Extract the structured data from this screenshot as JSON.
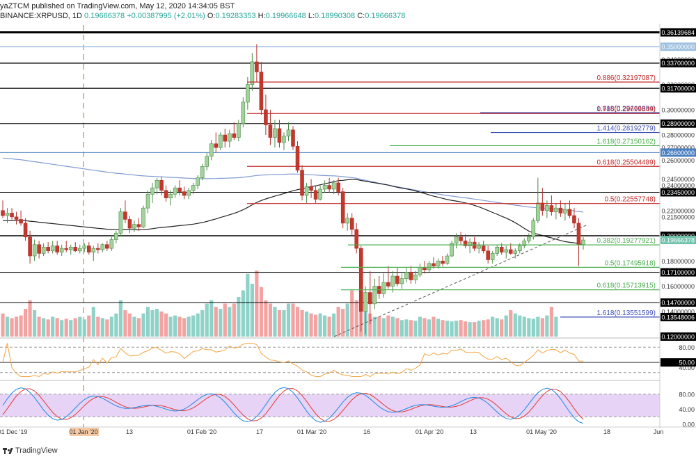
{
  "header": {
    "line1": "yaZTCM published on TradingView.com, May 12, 2020 14:34:05 BST",
    "symbol": "BINANCE:XRPUSD, 1D",
    "last": "0.19666378",
    "change": "+0.00387995 (+2.01%)",
    "o_label": "O:",
    "o": "0.19283353",
    "h_label": "H:",
    "h": "0.19966648",
    "l_label": "L:",
    "l": "0.18990308",
    "c_label": "C:",
    "c": "0.19666378"
  },
  "footer": {
    "brand": "TradingView"
  },
  "chart_data": {
    "type": "candlestick",
    "symbol": "XRPUSD",
    "interval": "1D",
    "exchange": "BINANCE",
    "price_range": [
      0.12,
      0.365
    ],
    "price_scale_ticks": [
      "0.36139684",
      "0.35000000",
      "0.34000000",
      "0.33700000",
      "0.32000000",
      "0.31700000",
      "0.30000000",
      "0.28900000",
      "0.28000000",
      "0.27000000",
      "0.26600000",
      "0.26000000",
      "0.24500000",
      "0.24000000",
      "0.23450000",
      "0.22000000",
      "0.21500000",
      "0.20000000",
      "0.19666378",
      "0.18000000",
      "0.17100000",
      "0.16000000",
      "0.14700000",
      "0.14000000",
      "0.13548006",
      "0.12000000"
    ],
    "last_price": 0.19666378,
    "horizontal_levels": [
      {
        "price": 0.36139684,
        "color": "#000000",
        "width": 3,
        "label": "0.36139684",
        "tag_bg": "#000000"
      },
      {
        "price": 0.35,
        "color": "#9ec1e0",
        "width": 1.5,
        "label": "0.35000000",
        "tag_bg": "#9ec1e0"
      },
      {
        "price": 0.337,
        "color": "#000000",
        "width": 1.5,
        "label": "0.33700000",
        "tag_bg": "#000000"
      },
      {
        "price": 0.317,
        "color": "#000000",
        "width": 1.5,
        "label": "0.31700000",
        "tag_bg": "#000000"
      },
      {
        "price": 0.289,
        "color": "#000000",
        "width": 1,
        "label": "0.28900000",
        "tag_bg": "#000000"
      },
      {
        "price": 0.266,
        "color": "#4a7fc1",
        "width": 1,
        "label": "0.26600000",
        "tag_bg": "#4a7fc1"
      },
      {
        "price": 0.2345,
        "color": "#000000",
        "width": 1,
        "label": "0.23450000",
        "tag_bg": "#000000"
      },
      {
        "price": 0.2,
        "color": "#000000",
        "width": 1.5,
        "label": "0.20000000",
        "tag_bg": "#000000"
      },
      {
        "price": 0.171,
        "color": "#000000",
        "width": 1,
        "label": "0.17100000",
        "tag_bg": "#000000"
      },
      {
        "price": 0.147,
        "color": "#000000",
        "width": 1,
        "label": "0.14700000",
        "tag_bg": "#000000"
      },
      {
        "price": 0.13548006,
        "color": "#000000",
        "width": 0,
        "label": "0.13548006",
        "tag_bg": "#000000"
      },
      {
        "price": 0.12,
        "color": "#000000",
        "width": 0,
        "label": "0.12000000",
        "tag_bg": "#000000"
      }
    ],
    "fib_levels": [
      {
        "ratio": "0.886",
        "price": 0.32197087,
        "color": "#c62828",
        "x_start": 355
      },
      {
        "ratio": "1.618",
        "price": 0.29766894,
        "color": "#3f51b5",
        "x_start": 690
      },
      {
        "ratio": "0.786",
        "price": 0.29699849,
        "color": "#c62828",
        "x_start": 355
      },
      {
        "ratio": "1.414",
        "price": 0.28192779,
        "color": "#3f51b5",
        "x_start": 705
      },
      {
        "ratio": "1.618",
        "price": 0.27150162,
        "color": "#4caf50",
        "x_start": 560
      },
      {
        "ratio": "0.618",
        "price": 0.25504489,
        "color": "#c62828",
        "x_start": 355
      },
      {
        "ratio": "0.5",
        "price": 0.22557748,
        "color": "#c62828",
        "x_start": 355
      },
      {
        "ratio": "0.382",
        "price": 0.19277921,
        "color": "#4caf50",
        "x_start": 500
      },
      {
        "ratio": "0.5",
        "price": 0.17495918,
        "color": "#4caf50",
        "x_start": 490
      },
      {
        "ratio": "0.618",
        "price": 0.15713915,
        "color": "#4caf50",
        "x_start": 490
      },
      {
        "ratio": "1.618",
        "price": 0.13551599,
        "color": "#3f51b5",
        "x_start": 805
      }
    ],
    "x_axis_labels": [
      "01 Dec '19",
      "01 Jan '20",
      "13",
      "01 Feb '20",
      "17",
      "01 Mar '20",
      "16",
      "01 Apr '20",
      "13",
      "01 May '20",
      "18",
      "Jun"
    ],
    "candles": [
      {
        "o": 0.22,
        "h": 0.228,
        "l": 0.214,
        "c": 0.216
      },
      {
        "o": 0.216,
        "h": 0.222,
        "l": 0.21,
        "c": 0.218
      },
      {
        "o": 0.218,
        "h": 0.222,
        "l": 0.213,
        "c": 0.215
      },
      {
        "o": 0.215,
        "h": 0.219,
        "l": 0.209,
        "c": 0.213
      },
      {
        "o": 0.213,
        "h": 0.22,
        "l": 0.208,
        "c": 0.21
      },
      {
        "o": 0.21,
        "h": 0.214,
        "l": 0.196,
        "c": 0.199
      },
      {
        "o": 0.199,
        "h": 0.204,
        "l": 0.178,
        "c": 0.184
      },
      {
        "o": 0.184,
        "h": 0.197,
        "l": 0.18,
        "c": 0.193
      },
      {
        "o": 0.193,
        "h": 0.196,
        "l": 0.182,
        "c": 0.186
      },
      {
        "o": 0.186,
        "h": 0.194,
        "l": 0.184,
        "c": 0.191
      },
      {
        "o": 0.191,
        "h": 0.195,
        "l": 0.186,
        "c": 0.188
      },
      {
        "o": 0.188,
        "h": 0.196,
        "l": 0.186,
        "c": 0.192
      },
      {
        "o": 0.192,
        "h": 0.196,
        "l": 0.185,
        "c": 0.187
      },
      {
        "o": 0.187,
        "h": 0.193,
        "l": 0.184,
        "c": 0.19
      },
      {
        "o": 0.19,
        "h": 0.196,
        "l": 0.187,
        "c": 0.189
      },
      {
        "o": 0.189,
        "h": 0.193,
        "l": 0.185,
        "c": 0.191
      },
      {
        "o": 0.191,
        "h": 0.195,
        "l": 0.187,
        "c": 0.188
      },
      {
        "o": 0.188,
        "h": 0.193,
        "l": 0.186,
        "c": 0.19
      },
      {
        "o": 0.19,
        "h": 0.194,
        "l": 0.187,
        "c": 0.192
      },
      {
        "o": 0.192,
        "h": 0.195,
        "l": 0.185,
        "c": 0.187
      },
      {
        "o": 0.187,
        "h": 0.192,
        "l": 0.18,
        "c": 0.19
      },
      {
        "o": 0.19,
        "h": 0.194,
        "l": 0.186,
        "c": 0.189
      },
      {
        "o": 0.189,
        "h": 0.194,
        "l": 0.187,
        "c": 0.193
      },
      {
        "o": 0.193,
        "h": 0.196,
        "l": 0.188,
        "c": 0.19
      },
      {
        "o": 0.19,
        "h": 0.199,
        "l": 0.188,
        "c": 0.197
      },
      {
        "o": 0.197,
        "h": 0.204,
        "l": 0.194,
        "c": 0.202
      },
      {
        "o": 0.202,
        "h": 0.222,
        "l": 0.2,
        "c": 0.219
      },
      {
        "o": 0.219,
        "h": 0.228,
        "l": 0.21,
        "c": 0.213
      },
      {
        "o": 0.213,
        "h": 0.216,
        "l": 0.202,
        "c": 0.206
      },
      {
        "o": 0.206,
        "h": 0.212,
        "l": 0.203,
        "c": 0.209
      },
      {
        "o": 0.209,
        "h": 0.214,
        "l": 0.204,
        "c": 0.207
      },
      {
        "o": 0.207,
        "h": 0.224,
        "l": 0.206,
        "c": 0.222
      },
      {
        "o": 0.222,
        "h": 0.236,
        "l": 0.218,
        "c": 0.233
      },
      {
        "o": 0.233,
        "h": 0.242,
        "l": 0.226,
        "c": 0.238
      },
      {
        "o": 0.238,
        "h": 0.246,
        "l": 0.233,
        "c": 0.244
      },
      {
        "o": 0.244,
        "h": 0.247,
        "l": 0.232,
        "c": 0.236
      },
      {
        "o": 0.236,
        "h": 0.24,
        "l": 0.227,
        "c": 0.23
      },
      {
        "o": 0.23,
        "h": 0.236,
        "l": 0.224,
        "c": 0.233
      },
      {
        "o": 0.233,
        "h": 0.24,
        "l": 0.23,
        "c": 0.238
      },
      {
        "o": 0.238,
        "h": 0.244,
        "l": 0.232,
        "c": 0.235
      },
      {
        "o": 0.235,
        "h": 0.239,
        "l": 0.229,
        "c": 0.232
      },
      {
        "o": 0.232,
        "h": 0.238,
        "l": 0.229,
        "c": 0.236
      },
      {
        "o": 0.236,
        "h": 0.242,
        "l": 0.233,
        "c": 0.24
      },
      {
        "o": 0.24,
        "h": 0.248,
        "l": 0.237,
        "c": 0.246
      },
      {
        "o": 0.246,
        "h": 0.257,
        "l": 0.244,
        "c": 0.255
      },
      {
        "o": 0.255,
        "h": 0.266,
        "l": 0.252,
        "c": 0.263
      },
      {
        "o": 0.263,
        "h": 0.276,
        "l": 0.26,
        "c": 0.273
      },
      {
        "o": 0.273,
        "h": 0.282,
        "l": 0.266,
        "c": 0.27
      },
      {
        "o": 0.27,
        "h": 0.282,
        "l": 0.268,
        "c": 0.28
      },
      {
        "o": 0.28,
        "h": 0.285,
        "l": 0.27,
        "c": 0.275
      },
      {
        "o": 0.275,
        "h": 0.284,
        "l": 0.27,
        "c": 0.281
      },
      {
        "o": 0.281,
        "h": 0.29,
        "l": 0.276,
        "c": 0.278
      },
      {
        "o": 0.278,
        "h": 0.292,
        "l": 0.275,
        "c": 0.289
      },
      {
        "o": 0.289,
        "h": 0.31,
        "l": 0.286,
        "c": 0.306
      },
      {
        "o": 0.306,
        "h": 0.326,
        "l": 0.3,
        "c": 0.32
      },
      {
        "o": 0.32,
        "h": 0.345,
        "l": 0.315,
        "c": 0.338
      },
      {
        "o": 0.338,
        "h": 0.352,
        "l": 0.322,
        "c": 0.33
      },
      {
        "o": 0.33,
        "h": 0.338,
        "l": 0.296,
        "c": 0.3
      },
      {
        "o": 0.3,
        "h": 0.312,
        "l": 0.28,
        "c": 0.288
      },
      {
        "o": 0.288,
        "h": 0.3,
        "l": 0.272,
        "c": 0.278
      },
      {
        "o": 0.278,
        "h": 0.292,
        "l": 0.27,
        "c": 0.285
      },
      {
        "o": 0.285,
        "h": 0.292,
        "l": 0.27,
        "c": 0.274
      },
      {
        "o": 0.274,
        "h": 0.282,
        "l": 0.268,
        "c": 0.279
      },
      {
        "o": 0.279,
        "h": 0.29,
        "l": 0.275,
        "c": 0.284
      },
      {
        "o": 0.284,
        "h": 0.287,
        "l": 0.268,
        "c": 0.271
      },
      {
        "o": 0.271,
        "h": 0.275,
        "l": 0.25,
        "c": 0.252
      },
      {
        "o": 0.252,
        "h": 0.256,
        "l": 0.228,
        "c": 0.232
      },
      {
        "o": 0.232,
        "h": 0.242,
        "l": 0.226,
        "c": 0.239
      },
      {
        "o": 0.239,
        "h": 0.245,
        "l": 0.23,
        "c": 0.236
      },
      {
        "o": 0.236,
        "h": 0.24,
        "l": 0.226,
        "c": 0.229
      },
      {
        "o": 0.229,
        "h": 0.24,
        "l": 0.228,
        "c": 0.237
      },
      {
        "o": 0.237,
        "h": 0.244,
        "l": 0.234,
        "c": 0.24
      },
      {
        "o": 0.24,
        "h": 0.246,
        "l": 0.234,
        "c": 0.237
      },
      {
        "o": 0.237,
        "h": 0.244,
        "l": 0.233,
        "c": 0.242
      },
      {
        "o": 0.242,
        "h": 0.246,
        "l": 0.232,
        "c": 0.235
      },
      {
        "o": 0.235,
        "h": 0.238,
        "l": 0.206,
        "c": 0.21
      },
      {
        "o": 0.21,
        "h": 0.218,
        "l": 0.204,
        "c": 0.214
      },
      {
        "o": 0.214,
        "h": 0.218,
        "l": 0.2,
        "c": 0.205
      },
      {
        "o": 0.205,
        "h": 0.21,
        "l": 0.186,
        "c": 0.19
      },
      {
        "o": 0.19,
        "h": 0.192,
        "l": 0.124,
        "c": 0.14
      },
      {
        "o": 0.14,
        "h": 0.16,
        "l": 0.122,
        "c": 0.155
      },
      {
        "o": 0.155,
        "h": 0.172,
        "l": 0.13,
        "c": 0.146
      },
      {
        "o": 0.146,
        "h": 0.166,
        "l": 0.142,
        "c": 0.16
      },
      {
        "o": 0.16,
        "h": 0.168,
        "l": 0.15,
        "c": 0.154
      },
      {
        "o": 0.154,
        "h": 0.17,
        "l": 0.151,
        "c": 0.163
      },
      {
        "o": 0.163,
        "h": 0.176,
        "l": 0.158,
        "c": 0.16
      },
      {
        "o": 0.16,
        "h": 0.172,
        "l": 0.155,
        "c": 0.168
      },
      {
        "o": 0.168,
        "h": 0.175,
        "l": 0.16,
        "c": 0.162
      },
      {
        "o": 0.162,
        "h": 0.17,
        "l": 0.158,
        "c": 0.166
      },
      {
        "o": 0.166,
        "h": 0.175,
        "l": 0.163,
        "c": 0.171
      },
      {
        "o": 0.171,
        "h": 0.176,
        "l": 0.162,
        "c": 0.165
      },
      {
        "o": 0.165,
        "h": 0.172,
        "l": 0.162,
        "c": 0.169
      },
      {
        "o": 0.169,
        "h": 0.178,
        "l": 0.167,
        "c": 0.175
      },
      {
        "o": 0.175,
        "h": 0.18,
        "l": 0.17,
        "c": 0.173
      },
      {
        "o": 0.173,
        "h": 0.18,
        "l": 0.171,
        "c": 0.178
      },
      {
        "o": 0.178,
        "h": 0.183,
        "l": 0.174,
        "c": 0.176
      },
      {
        "o": 0.176,
        "h": 0.182,
        "l": 0.174,
        "c": 0.18
      },
      {
        "o": 0.18,
        "h": 0.184,
        "l": 0.176,
        "c": 0.178
      },
      {
        "o": 0.178,
        "h": 0.186,
        "l": 0.177,
        "c": 0.184
      },
      {
        "o": 0.184,
        "h": 0.196,
        "l": 0.183,
        "c": 0.194
      },
      {
        "o": 0.194,
        "h": 0.202,
        "l": 0.19,
        "c": 0.199
      },
      {
        "o": 0.199,
        "h": 0.203,
        "l": 0.193,
        "c": 0.196
      },
      {
        "o": 0.196,
        "h": 0.201,
        "l": 0.19,
        "c": 0.192
      },
      {
        "o": 0.192,
        "h": 0.198,
        "l": 0.186,
        "c": 0.195
      },
      {
        "o": 0.195,
        "h": 0.199,
        "l": 0.188,
        "c": 0.19
      },
      {
        "o": 0.19,
        "h": 0.195,
        "l": 0.186,
        "c": 0.192
      },
      {
        "o": 0.192,
        "h": 0.196,
        "l": 0.186,
        "c": 0.188
      },
      {
        "o": 0.188,
        "h": 0.192,
        "l": 0.178,
        "c": 0.181
      },
      {
        "o": 0.181,
        "h": 0.188,
        "l": 0.178,
        "c": 0.186
      },
      {
        "o": 0.186,
        "h": 0.193,
        "l": 0.184,
        "c": 0.191
      },
      {
        "o": 0.191,
        "h": 0.194,
        "l": 0.185,
        "c": 0.187
      },
      {
        "o": 0.187,
        "h": 0.192,
        "l": 0.182,
        "c": 0.189
      },
      {
        "o": 0.189,
        "h": 0.194,
        "l": 0.185,
        "c": 0.186
      },
      {
        "o": 0.186,
        "h": 0.19,
        "l": 0.182,
        "c": 0.188
      },
      {
        "o": 0.188,
        "h": 0.194,
        "l": 0.186,
        "c": 0.192
      },
      {
        "o": 0.192,
        "h": 0.198,
        "l": 0.19,
        "c": 0.196
      },
      {
        "o": 0.196,
        "h": 0.202,
        "l": 0.194,
        "c": 0.199
      },
      {
        "o": 0.199,
        "h": 0.214,
        "l": 0.197,
        "c": 0.212
      },
      {
        "o": 0.212,
        "h": 0.246,
        "l": 0.21,
        "c": 0.226
      },
      {
        "o": 0.226,
        "h": 0.238,
        "l": 0.216,
        "c": 0.22
      },
      {
        "o": 0.22,
        "h": 0.228,
        "l": 0.214,
        "c": 0.224
      },
      {
        "o": 0.224,
        "h": 0.232,
        "l": 0.216,
        "c": 0.219
      },
      {
        "o": 0.219,
        "h": 0.226,
        "l": 0.213,
        "c": 0.222
      },
      {
        "o": 0.222,
        "h": 0.228,
        "l": 0.215,
        "c": 0.218
      },
      {
        "o": 0.218,
        "h": 0.226,
        "l": 0.212,
        "c": 0.221
      },
      {
        "o": 0.221,
        "h": 0.228,
        "l": 0.214,
        "c": 0.216
      },
      {
        "o": 0.216,
        "h": 0.222,
        "l": 0.206,
        "c": 0.21
      },
      {
        "o": 0.21,
        "h": 0.214,
        "l": 0.176,
        "c": 0.193
      },
      {
        "o": 0.193,
        "h": 0.199,
        "l": 0.189,
        "c": 0.19666
      }
    ],
    "volume": [
      0.35,
      0.3,
      0.28,
      0.3,
      0.32,
      0.42,
      0.55,
      0.4,
      0.3,
      0.28,
      0.26,
      0.3,
      0.28,
      0.25,
      0.27,
      0.25,
      0.28,
      0.3,
      0.26,
      0.32,
      0.45,
      0.3,
      0.28,
      0.26,
      0.3,
      0.35,
      0.55,
      0.4,
      0.35,
      0.3,
      0.28,
      0.35,
      0.45,
      0.4,
      0.42,
      0.38,
      0.35,
      0.3,
      0.32,
      0.3,
      0.28,
      0.3,
      0.32,
      0.35,
      0.4,
      0.5,
      0.55,
      0.45,
      0.42,
      0.5,
      0.45,
      0.5,
      0.6,
      0.7,
      0.95,
      0.8,
      1.0,
      0.75,
      0.55,
      0.5,
      0.45,
      0.4,
      0.4,
      0.5,
      0.5,
      0.45,
      0.4,
      0.38,
      0.35,
      0.33,
      0.35,
      0.32,
      0.3,
      0.35,
      0.45,
      0.42,
      0.5,
      0.7,
      0.55,
      0.5,
      0.4,
      0.35,
      0.3,
      0.3,
      0.28,
      0.32,
      0.3,
      0.28,
      0.25,
      0.26,
      0.25,
      0.24,
      0.3,
      0.28,
      0.26,
      0.3,
      0.27,
      0.25,
      0.24,
      0.23,
      0.24,
      0.25,
      0.23,
      0.22,
      0.22,
      0.24,
      0.25,
      0.26,
      0.3,
      0.28,
      0.26,
      0.32,
      0.4,
      0.35,
      0.32,
      0.3,
      0.28,
      0.27,
      0.3,
      0.28,
      0.32,
      0.45,
      0.3
    ],
    "moving_averages": [
      {
        "name": "MA-200",
        "color": "#7e9bd1"
      },
      {
        "name": "MA-100",
        "color": "#222222"
      }
    ],
    "trendline": {
      "style": "dashed",
      "color": "#555555",
      "from_price": 0.12,
      "to_price": 0.209
    },
    "rsi": {
      "color": "#f2a541",
      "levels": [
        80,
        50,
        40
      ],
      "level_tags": [
        "80.00",
        "50.00",
        "40.00"
      ],
      "last_tag": "50.00"
    },
    "stoch_rsi": {
      "k_color": "#1e88e5",
      "d_color": "#e53935",
      "band_upper": 80,
      "band_lower": 20,
      "level_tags": [
        "80.00",
        "40.00",
        "0.00"
      ]
    },
    "vertical_marker": {
      "label": "01 Jan '20",
      "style": "dashed",
      "color": "#f0b27a"
    }
  }
}
